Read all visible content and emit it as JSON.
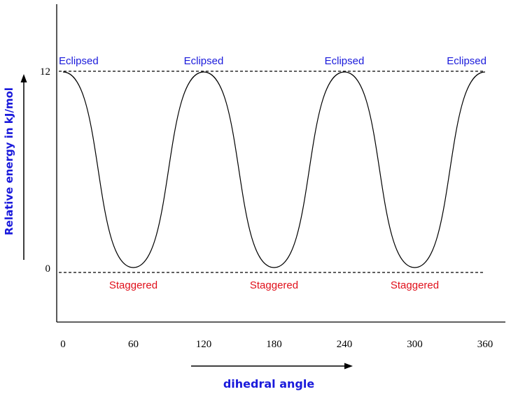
{
  "chart_data": {
    "type": "line",
    "title": "",
    "xlabel": "dihedral angle",
    "ylabel": "Relative energy in kJ/mol",
    "xlim": [
      0,
      360
    ],
    "ylim": [
      0,
      12
    ],
    "x_ticks": [
      "0",
      "60",
      "120",
      "180",
      "240",
      "300",
      "360"
    ],
    "y_ticks": [
      "0",
      "12"
    ],
    "grid": false,
    "legend": "none",
    "series": [
      {
        "x": [
          0,
          60,
          120,
          180,
          240,
          300,
          360
        ],
        "y": [
          12,
          0,
          12,
          0,
          12,
          0,
          12
        ]
      }
    ],
    "reference_lines": [
      {
        "y": 12,
        "style": "dashed"
      },
      {
        "y": 0,
        "style": "dashed"
      }
    ],
    "annotations": {
      "eclipsed": [
        {
          "x": 0,
          "text": "Eclipsed"
        },
        {
          "x": 120,
          "text": "Eclipsed"
        },
        {
          "x": 240,
          "text": "Eclipsed"
        },
        {
          "x": 360,
          "text": "Eclipsed"
        }
      ],
      "staggered": [
        {
          "x": 60,
          "text": "Staggered"
        },
        {
          "x": 180,
          "text": "Staggered"
        },
        {
          "x": 300,
          "text": "Staggered"
        }
      ]
    },
    "colors": {
      "eclipsed": "#1a1adb",
      "staggered": "#e0101b",
      "axis_label": "#1a1adb",
      "curve": "#000000"
    }
  }
}
